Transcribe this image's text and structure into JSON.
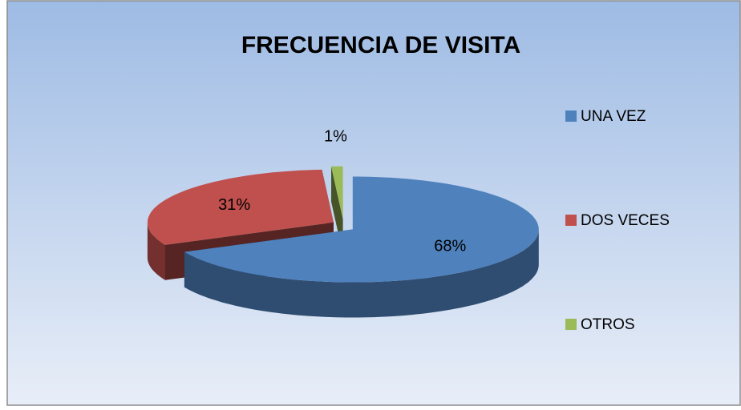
{
  "chart_data": {
    "type": "pie",
    "title": "FRECUENCIA DE VISITA",
    "categories": [
      "UNA VEZ",
      "DOS VECES",
      "OTROS"
    ],
    "values": [
      68,
      31,
      1
    ],
    "value_labels": [
      "68%",
      "31%",
      "1%"
    ],
    "colors": [
      "#4f81bd",
      "#c0504d",
      "#9bbb59"
    ],
    "legend": "right"
  }
}
